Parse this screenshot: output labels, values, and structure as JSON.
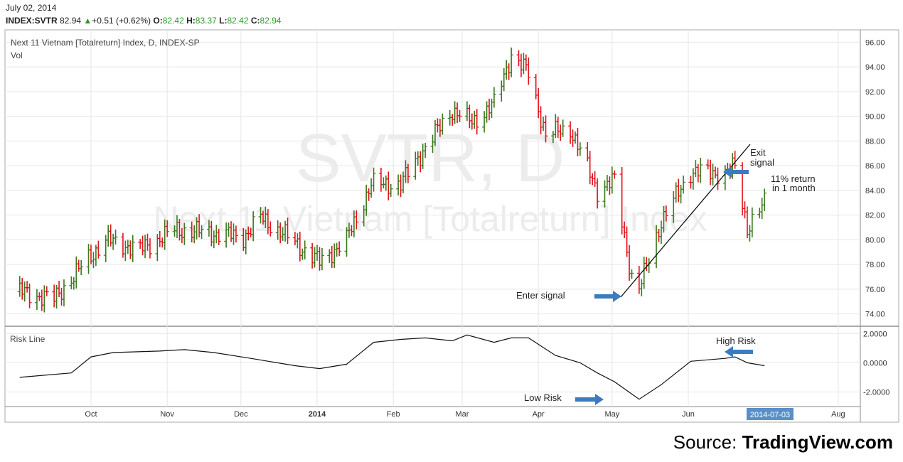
{
  "header": {
    "date": "July 02, 2014",
    "symbol": "INDEX:SVTR",
    "last": "82.94",
    "change": "+0.51 (+0.62%)",
    "o_label": "O:",
    "o": "82.42",
    "h_label": "H:",
    "h": "83.37",
    "l_label": "L:",
    "l": "82.42",
    "c_label": "C:",
    "c": "82.94"
  },
  "panel": {
    "title": "Next 11 Vietnam [Totalreturn] Index, D, INDEX-SP",
    "vol_label": "Vol",
    "watermark_symbol": "SVTR, D",
    "watermark_name": "Next 11 Vietnam [Totalreturn] Index",
    "risk_label": "Risk Line"
  },
  "annotations": {
    "enter_signal": "Enter signal",
    "exit_signal_1": "Exit",
    "exit_signal_2": "signal",
    "return_1": "11% return",
    "return_2": "in 1 month",
    "high_risk": "High Risk",
    "low_risk": "Low Risk"
  },
  "x_axis": {
    "ticks": [
      "Oct",
      "Nov",
      "Dec",
      "2014",
      "Feb",
      "Mar",
      "Apr",
      "May",
      "Jun",
      "Aug"
    ],
    "current_date": "2014-07-03"
  },
  "source": {
    "prefix": "Source: ",
    "brand": "TradingView.com"
  },
  "colors": {
    "up": "#3c7a1e",
    "down": "#e0141e",
    "arrow": "#3b7cc0",
    "grid": "#e6e6e6",
    "axis_highlight": "#5a8fc8"
  },
  "chart_data": [
    {
      "type": "ohlc",
      "title": "Next 11 Vietnam [Totalreturn] Index, D, INDEX-SP",
      "ylim": [
        73.0,
        97.0
      ],
      "y_ticks": [
        "96.00",
        "94.00",
        "92.00",
        "90.00",
        "88.00",
        "86.00",
        "84.00",
        "82.00",
        "80.00",
        "78.00",
        "76.00",
        "74.00"
      ],
      "series": [
        {
          "x": "2013-09-02",
          "close": 75.8
        },
        {
          "x": "2013-09-16",
          "close": 75.2
        },
        {
          "x": "2013-09-30",
          "close": 78.5
        },
        {
          "x": "2013-10-07",
          "close": 80.0
        },
        {
          "x": "2013-10-21",
          "close": 79.2
        },
        {
          "x": "2013-11-04",
          "close": 80.8
        },
        {
          "x": "2013-11-18",
          "close": 80.6
        },
        {
          "x": "2013-12-02",
          "close": 80.2
        },
        {
          "x": "2013-12-09",
          "close": 81.8
        },
        {
          "x": "2013-12-23",
          "close": 79.8
        },
        {
          "x": "2014-01-02",
          "close": 78.2
        },
        {
          "x": "2014-01-13",
          "close": 80.0
        },
        {
          "x": "2014-01-23",
          "close": 84.5
        },
        {
          "x": "2014-02-04",
          "close": 84.5
        },
        {
          "x": "2014-02-14",
          "close": 87.5
        },
        {
          "x": "2014-02-25",
          "close": 90.5
        },
        {
          "x": "2014-03-05",
          "close": 89.5
        },
        {
          "x": "2014-03-14",
          "close": 91.0
        },
        {
          "x": "2014-03-21",
          "close": 95.0
        },
        {
          "x": "2014-03-28",
          "close": 93.5
        },
        {
          "x": "2014-04-04",
          "close": 88.5
        },
        {
          "x": "2014-04-14",
          "close": 89.0
        },
        {
          "x": "2014-04-25",
          "close": 84.0
        },
        {
          "x": "2014-05-02",
          "close": 84.8
        },
        {
          "x": "2014-05-09",
          "close": 77.0
        },
        {
          "x": "2014-05-12",
          "close": 76.0
        },
        {
          "x": "2014-05-21",
          "close": 81.5
        },
        {
          "x": "2014-06-02",
          "close": 85.5
        },
        {
          "x": "2014-06-16",
          "close": 85.4
        },
        {
          "x": "2014-06-20",
          "close": 85.9
        },
        {
          "x": "2014-06-25",
          "close": 81.0
        },
        {
          "x": "2014-07-02",
          "close": 82.94
        }
      ]
    },
    {
      "type": "line",
      "title": "Risk Line",
      "ylim": [
        -3.0,
        2.5
      ],
      "y_ticks": [
        "2.0000",
        "0.0000",
        "-2.0000"
      ],
      "series": [
        {
          "x": "2013-09-02",
          "y": -1.0
        },
        {
          "x": "2013-09-23",
          "y": -0.7
        },
        {
          "x": "2013-10-01",
          "y": 0.4
        },
        {
          "x": "2013-10-10",
          "y": 0.7
        },
        {
          "x": "2013-10-29",
          "y": 0.8
        },
        {
          "x": "2013-11-08",
          "y": 0.9
        },
        {
          "x": "2013-11-20",
          "y": 0.7
        },
        {
          "x": "2013-12-05",
          "y": 0.3
        },
        {
          "x": "2013-12-23",
          "y": -0.2
        },
        {
          "x": "2014-01-02",
          "y": -0.4
        },
        {
          "x": "2014-01-13",
          "y": -0.1
        },
        {
          "x": "2014-01-24",
          "y": 1.4
        },
        {
          "x": "2014-02-04",
          "y": 1.6
        },
        {
          "x": "2014-02-14",
          "y": 1.7
        },
        {
          "x": "2014-02-25",
          "y": 1.5
        },
        {
          "x": "2014-03-03",
          "y": 1.9
        },
        {
          "x": "2014-03-14",
          "y": 1.4
        },
        {
          "x": "2014-03-21",
          "y": 1.7
        },
        {
          "x": "2014-03-28",
          "y": 1.7
        },
        {
          "x": "2014-04-08",
          "y": 0.5
        },
        {
          "x": "2014-04-18",
          "y": 0.0
        },
        {
          "x": "2014-04-25",
          "y": -0.7
        },
        {
          "x": "2014-05-02",
          "y": -1.3
        },
        {
          "x": "2014-05-12",
          "y": -2.5
        },
        {
          "x": "2014-05-21",
          "y": -1.5
        },
        {
          "x": "2014-06-02",
          "y": 0.1
        },
        {
          "x": "2014-06-16",
          "y": 0.3
        },
        {
          "x": "2014-06-20",
          "y": 0.4
        },
        {
          "x": "2014-06-25",
          "y": 0.0
        },
        {
          "x": "2014-07-02",
          "y": -0.2
        }
      ]
    }
  ]
}
